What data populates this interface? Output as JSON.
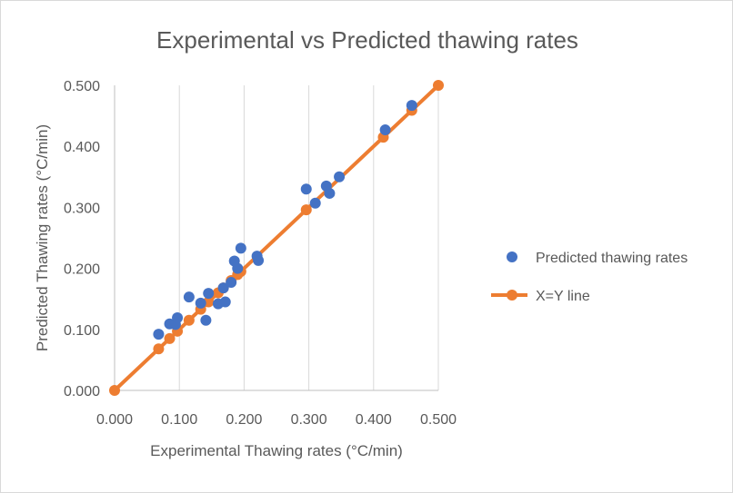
{
  "chart_data": {
    "type": "scatter",
    "title": "Experimental vs Predicted thawing rates",
    "xlabel": "Experimental Thawing rates (°C/min)",
    "ylabel": "Predicted Thawing rates (°C/min)",
    "xlim": [
      0,
      0.5
    ],
    "ylim": [
      0,
      0.5
    ],
    "x_ticks": [
      "0.000",
      "0.100",
      "0.200",
      "0.300",
      "0.400",
      "0.500"
    ],
    "y_ticks": [
      "0.000",
      "0.100",
      "0.200",
      "0.300",
      "0.400",
      "0.500"
    ],
    "grid": "vertical",
    "legend_position": "right",
    "series": [
      {
        "name": "Predicted thawing rates",
        "kind": "scatter",
        "color": "#4472c4",
        "points": [
          [
            0.068,
            0.092
          ],
          [
            0.085,
            0.109
          ],
          [
            0.094,
            0.108
          ],
          [
            0.097,
            0.119
          ],
          [
            0.115,
            0.153
          ],
          [
            0.133,
            0.143
          ],
          [
            0.141,
            0.115
          ],
          [
            0.145,
            0.159
          ],
          [
            0.16,
            0.142
          ],
          [
            0.168,
            0.168
          ],
          [
            0.171,
            0.145
          ],
          [
            0.18,
            0.177
          ],
          [
            0.185,
            0.212
          ],
          [
            0.19,
            0.2
          ],
          [
            0.195,
            0.233
          ],
          [
            0.22,
            0.22
          ],
          [
            0.222,
            0.213
          ],
          [
            0.296,
            0.33
          ],
          [
            0.31,
            0.307
          ],
          [
            0.327,
            0.335
          ],
          [
            0.332,
            0.323
          ],
          [
            0.347,
            0.35
          ],
          [
            0.418,
            0.427
          ],
          [
            0.459,
            0.467
          ]
        ]
      },
      {
        "name": "X=Y line",
        "kind": "line",
        "color": "#ed7d31",
        "points": [
          [
            0.0,
            0.0
          ],
          [
            0.068,
            0.068
          ],
          [
            0.085,
            0.085
          ],
          [
            0.097,
            0.097
          ],
          [
            0.115,
            0.115
          ],
          [
            0.133,
            0.133
          ],
          [
            0.145,
            0.145
          ],
          [
            0.16,
            0.16
          ],
          [
            0.168,
            0.168
          ],
          [
            0.18,
            0.18
          ],
          [
            0.19,
            0.19
          ],
          [
            0.195,
            0.195
          ],
          [
            0.296,
            0.296
          ],
          [
            0.415,
            0.415
          ],
          [
            0.459,
            0.459
          ],
          [
            0.5,
            0.5
          ]
        ]
      }
    ]
  }
}
